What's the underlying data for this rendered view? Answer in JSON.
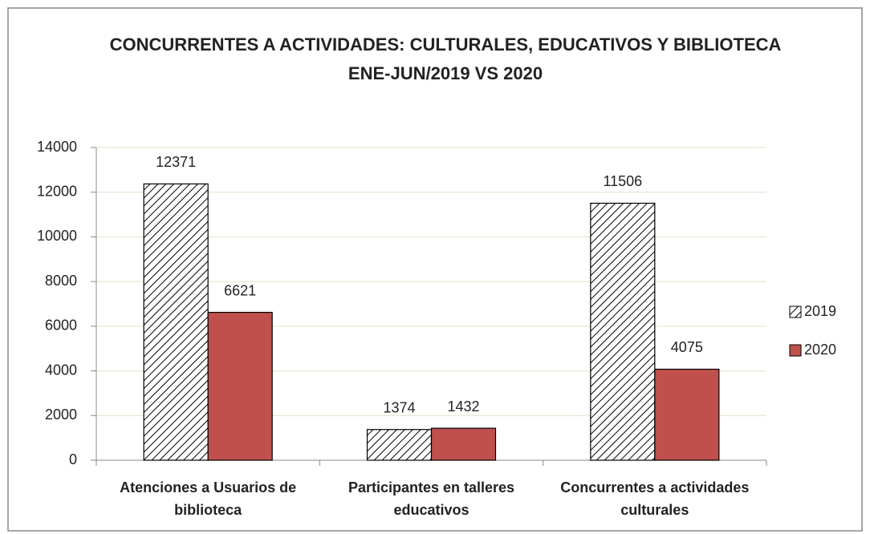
{
  "chart_data": {
    "type": "bar",
    "title": "CONCURRENTES A ACTIVIDADES: CULTURALES, EDUCATIVOS Y BIBLIOTECA",
    "subtitle": "ENE-JUN/2019 VS 2020",
    "categories": [
      "Atenciones a Usuarios de biblioteca",
      "Participantes en talleres educativos",
      "Concurrentes a actividades culturales"
    ],
    "series": [
      {
        "name": "2019",
        "color": "#000000",
        "pattern": "hatch",
        "values": [
          12371,
          1374,
          11506
        ]
      },
      {
        "name": "2020",
        "color": "#c0504d",
        "values": [
          6621,
          1432,
          4075
        ]
      }
    ],
    "ylim": [
      0,
      14000
    ],
    "yticks": [
      0,
      2000,
      4000,
      6000,
      8000,
      10000,
      12000,
      14000
    ],
    "grid": true,
    "legend": "right"
  }
}
